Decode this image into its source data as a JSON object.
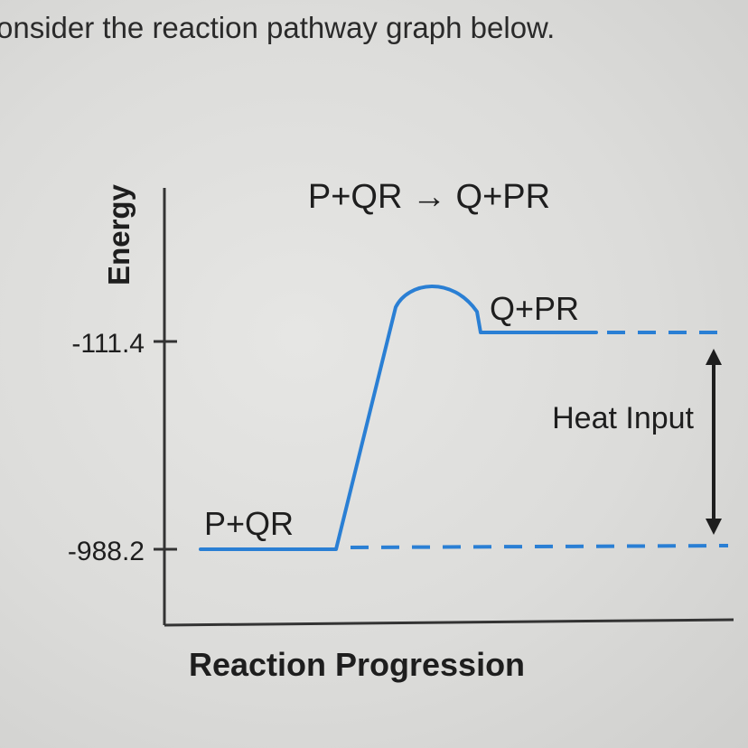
{
  "prompt": "onsider the reaction pathway graph below.",
  "chart_data": {
    "type": "line",
    "title": "P+QR → Q+PR",
    "xlabel": "Reaction Progression",
    "ylabel": "Energy",
    "yticks": [
      "-111.4",
      "-988.2"
    ],
    "reactant_label": "P+QR",
    "product_label": "Q+PR",
    "reactant_energy": -988.2,
    "product_energy": -111.4,
    "annotation": "Heat Input",
    "colors": {
      "curve": "#2a7fd4",
      "dashes": "#2a7fd4",
      "axes": "#333333"
    }
  }
}
